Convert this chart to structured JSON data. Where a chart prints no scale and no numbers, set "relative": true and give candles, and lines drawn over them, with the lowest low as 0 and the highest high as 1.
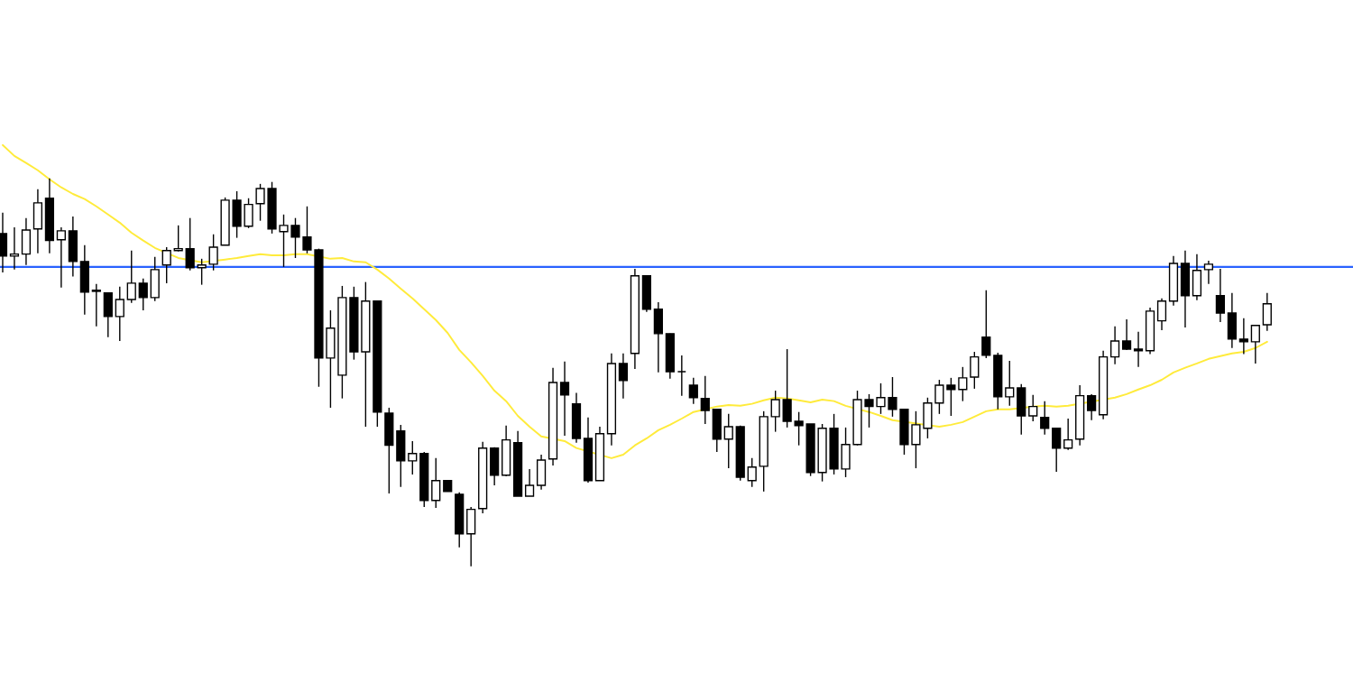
{
  "chart_data": {
    "type": "candlestick",
    "relative": true,
    "categories": [
      null,
      null,
      null,
      null,
      null,
      null,
      null,
      null,
      null,
      null,
      null,
      null,
      null,
      null,
      null,
      null,
      null,
      null,
      null,
      null,
      null,
      null,
      null,
      null,
      null,
      null,
      null,
      null,
      null,
      null,
      null,
      null,
      null,
      null,
      null,
      null,
      null,
      null,
      null,
      null,
      null,
      null,
      null,
      null,
      null,
      null,
      null,
      null,
      null,
      null,
      null,
      null,
      null,
      null,
      null,
      null,
      null,
      null,
      null,
      null,
      null,
      null,
      null,
      null,
      null,
      null,
      null,
      null,
      null,
      null,
      null,
      null,
      null,
      null,
      null,
      null,
      null,
      null,
      null,
      null,
      null,
      null,
      null,
      null,
      null,
      null,
      null,
      null,
      null,
      null,
      null,
      null,
      null,
      null,
      null,
      null,
      null,
      null,
      null,
      null,
      null,
      null,
      null,
      null,
      null,
      null,
      null,
      null,
      null
    ],
    "ohlc": [
      [
        0.858,
        0.912,
        0.758,
        0.8
      ],
      [
        0.8,
        0.874,
        0.765,
        0.805
      ],
      [
        0.805,
        0.898,
        0.777,
        0.867
      ],
      [
        0.87,
        0.972,
        0.807,
        0.937
      ],
      [
        0.949,
        1.0,
        0.807,
        0.84
      ],
      [
        0.842,
        0.874,
        0.719,
        0.865
      ],
      [
        0.865,
        0.902,
        0.747,
        0.786
      ],
      [
        0.786,
        0.828,
        0.649,
        0.707
      ],
      [
        0.712,
        0.728,
        0.619,
        0.709
      ],
      [
        0.705,
        0.705,
        0.591,
        0.644
      ],
      [
        0.644,
        0.721,
        0.581,
        0.688
      ],
      [
        0.688,
        0.814,
        0.679,
        0.73
      ],
      [
        0.73,
        0.742,
        0.66,
        0.693
      ],
      [
        0.693,
        0.798,
        0.684,
        0.765
      ],
      [
        0.777,
        0.823,
        0.73,
        0.814
      ],
      [
        0.814,
        0.879,
        0.812,
        0.819
      ],
      [
        0.819,
        0.898,
        0.763,
        0.77
      ],
      [
        0.77,
        0.793,
        0.726,
        0.777
      ],
      [
        0.779,
        0.856,
        0.763,
        0.823
      ],
      [
        0.828,
        0.951,
        0.828,
        0.944
      ],
      [
        0.944,
        0.967,
        0.847,
        0.877
      ],
      [
        0.877,
        0.949,
        0.872,
        0.933
      ],
      [
        0.935,
        0.986,
        0.891,
        0.974
      ],
      [
        0.974,
        0.991,
        0.858,
        0.87
      ],
      [
        0.863,
        0.907,
        0.772,
        0.879
      ],
      [
        0.879,
        0.898,
        0.795,
        0.849
      ],
      [
        0.849,
        0.928,
        0.807,
        0.816
      ],
      [
        0.816,
        0.819,
        0.463,
        0.537
      ],
      [
        0.537,
        0.66,
        0.409,
        0.614
      ],
      [
        0.493,
        0.723,
        0.433,
        0.693
      ],
      [
        0.693,
        0.721,
        0.533,
        0.553
      ],
      [
        0.553,
        0.733,
        0.36,
        0.684
      ],
      [
        0.684,
        0.684,
        0.36,
        0.398
      ],
      [
        0.395,
        0.409,
        0.188,
        0.312
      ],
      [
        0.349,
        0.365,
        0.205,
        0.272
      ],
      [
        0.272,
        0.323,
        0.237,
        0.291
      ],
      [
        0.291,
        0.295,
        0.153,
        0.17
      ],
      [
        0.17,
        0.279,
        0.151,
        0.221
      ],
      [
        0.221,
        0.221,
        0.193,
        0.193
      ],
      [
        0.186,
        0.191,
        0.049,
        0.084
      ],
      [
        0.084,
        0.153,
        0.0,
        0.147
      ],
      [
        0.149,
        0.321,
        0.137,
        0.305
      ],
      [
        0.305,
        0.307,
        0.209,
        0.235
      ],
      [
        0.235,
        0.363,
        0.233,
        0.326
      ],
      [
        0.319,
        0.349,
        0.181,
        0.181
      ],
      [
        0.181,
        0.251,
        0.181,
        0.209
      ],
      [
        0.209,
        0.288,
        0.198,
        0.274
      ],
      [
        0.277,
        0.512,
        0.26,
        0.474
      ],
      [
        0.474,
        0.528,
        0.337,
        0.442
      ],
      [
        0.419,
        0.447,
        0.319,
        0.33
      ],
      [
        0.33,
        0.384,
        0.216,
        0.221
      ],
      [
        0.221,
        0.36,
        0.221,
        0.342
      ],
      [
        0.342,
        0.549,
        0.312,
        0.523
      ],
      [
        0.523,
        0.549,
        0.433,
        0.479
      ],
      [
        0.549,
        0.767,
        0.509,
        0.749
      ],
      [
        0.749,
        0.749,
        0.656,
        0.663
      ],
      [
        0.663,
        0.681,
        0.5,
        0.6
      ],
      [
        0.6,
        0.6,
        0.484,
        0.502
      ],
      [
        0.502,
        0.544,
        0.44,
        0.502
      ],
      [
        0.467,
        0.486,
        0.419,
        0.435
      ],
      [
        0.433,
        0.491,
        0.367,
        0.402
      ],
      [
        0.405,
        0.405,
        0.295,
        0.328
      ],
      [
        0.328,
        0.393,
        0.253,
        0.36
      ],
      [
        0.36,
        0.363,
        0.221,
        0.23
      ],
      [
        0.221,
        0.279,
        0.205,
        0.256
      ],
      [
        0.258,
        0.4,
        0.193,
        0.386
      ],
      [
        0.386,
        0.453,
        0.347,
        0.43
      ],
      [
        0.43,
        0.56,
        0.358,
        0.374
      ],
      [
        0.374,
        0.398,
        0.312,
        0.363
      ],
      [
        0.367,
        0.367,
        0.233,
        0.242
      ],
      [
        0.242,
        0.367,
        0.219,
        0.356
      ],
      [
        0.356,
        0.393,
        0.237,
        0.251
      ],
      [
        0.251,
        0.358,
        0.23,
        0.314
      ],
      [
        0.314,
        0.453,
        0.312,
        0.43
      ],
      [
        0.43,
        0.444,
        0.358,
        0.412
      ],
      [
        0.412,
        0.472,
        0.393,
        0.435
      ],
      [
        0.435,
        0.488,
        0.386,
        0.405
      ],
      [
        0.405,
        0.405,
        0.288,
        0.314
      ],
      [
        0.314,
        0.4,
        0.253,
        0.365
      ],
      [
        0.356,
        0.435,
        0.33,
        0.421
      ],
      [
        0.421,
        0.481,
        0.393,
        0.467
      ],
      [
        0.467,
        0.486,
        0.388,
        0.456
      ],
      [
        0.456,
        0.514,
        0.426,
        0.486
      ],
      [
        0.488,
        0.553,
        0.458,
        0.54
      ],
      [
        0.591,
        0.712,
        0.537,
        0.544
      ],
      [
        0.544,
        0.551,
        0.405,
        0.437
      ],
      [
        0.437,
        0.53,
        0.414,
        0.46
      ],
      [
        0.46,
        0.47,
        0.34,
        0.388
      ],
      [
        0.388,
        0.442,
        0.374,
        0.412
      ],
      [
        0.384,
        0.426,
        0.34,
        0.356
      ],
      [
        0.356,
        0.356,
        0.244,
        0.305
      ],
      [
        0.305,
        0.381,
        0.3,
        0.326
      ],
      [
        0.328,
        0.467,
        0.312,
        0.44
      ],
      [
        0.44,
        0.444,
        0.377,
        0.402
      ],
      [
        0.391,
        0.556,
        0.379,
        0.54
      ],
      [
        0.54,
        0.619,
        0.521,
        0.581
      ],
      [
        0.581,
        0.637,
        0.558,
        0.56
      ],
      [
        0.56,
        0.605,
        0.514,
        0.556
      ],
      [
        0.556,
        0.667,
        0.547,
        0.658
      ],
      [
        0.633,
        0.691,
        0.609,
        0.684
      ],
      [
        0.684,
        0.8,
        0.672,
        0.781
      ],
      [
        0.781,
        0.814,
        0.616,
        0.698
      ],
      [
        0.698,
        0.805,
        0.686,
        0.763
      ],
      [
        0.765,
        0.788,
        0.728,
        0.779
      ],
      [
        0.698,
        0.767,
        0.63,
        0.653
      ],
      [
        0.653,
        0.705,
        0.563,
        0.586
      ],
      [
        0.586,
        0.64,
        0.547,
        0.579
      ],
      [
        0.579,
        0.623,
        0.523,
        0.621
      ],
      [
        0.623,
        0.705,
        0.607,
        0.677
      ]
    ],
    "series": [
      {
        "type": "line",
        "color": "#ffeb3b",
        "values": [
          1.086,
          1.058,
          1.04,
          1.021,
          0.998,
          0.977,
          0.96,
          0.947,
          0.928,
          0.907,
          0.886,
          0.86,
          0.84,
          0.821,
          null,
          0.795,
          null,
          0.784,
          null,
          0.791,
          0.795,
          0.8,
          0.805,
          0.802,
          0.802,
          0.805,
          0.805,
          null,
          0.793,
          0.795,
          0.786,
          0.784,
          0.765,
          0.742,
          0.716,
          0.691,
          0.663,
          0.635,
          0.602,
          0.558,
          0.526,
          0.491,
          0.453,
          0.426,
          0.388,
          0.36,
          0.335,
          null,
          0.323,
          0.305,
          null,
          null,
          0.279,
          0.288,
          0.312,
          0.33,
          0.351,
          0.365,
          0.381,
          0.398,
          null,
          0.412,
          0.416,
          0.414,
          0.419,
          0.428,
          0.435,
          0.433,
          0.428,
          0.423,
          0.43,
          0.426,
          0.414,
          null,
          0.398,
          0.388,
          0.377,
          null,
          null,
          null,
          0.36,
          0.365,
          0.372,
          0.386,
          0.4,
          0.405,
          0.405,
          null,
          0.412,
          0.414,
          0.412,
          0.414,
          null,
          null,
          null,
          0.435,
          0.444,
          0.456,
          0.467,
          0.481,
          0.5,
          0.512,
          0.523,
          0.535,
          0.542,
          0.549,
          0.553,
          0.563,
          0.579
        ]
      }
    ],
    "ref_lines": [
      {
        "axis": "y",
        "value": 0.772,
        "color": "#2962ff"
      }
    ]
  }
}
